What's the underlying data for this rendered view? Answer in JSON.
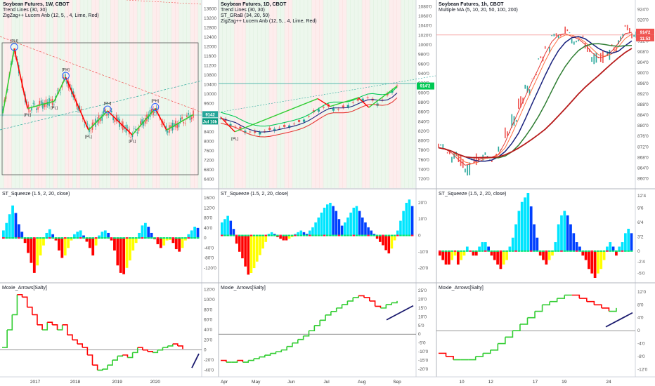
{
  "chart_data": [
    {
      "type": "line",
      "panel": "weekly-price",
      "title": "Soybean Futures, 1W, CBOT",
      "indicators": [
        "Trend Lines (30, 30)",
        "ZigZag++ Lucem Anb (12, 5, , 4, Lime, Red)"
      ],
      "y_ticks": [
        "13600",
        "13200",
        "12800",
        "12400",
        "12000",
        "11600",
        "11200",
        "10800",
        "10400",
        "10000",
        "9600",
        "9200",
        "8800",
        "8400",
        "8000",
        "7600",
        "7200",
        "6800",
        "6400"
      ],
      "ylim": [
        6200,
        13800
      ],
      "x_ticks": [
        "2017",
        "2018",
        "2019",
        "2020"
      ],
      "zigzag": [
        [
          0,
          9200
        ],
        [
          0.06,
          11900
        ],
        [
          0.13,
          9400
        ],
        [
          0.27,
          9700
        ],
        [
          0.33,
          10700
        ],
        [
          0.45,
          8500
        ],
        [
          0.55,
          9300
        ],
        [
          0.68,
          8300
        ],
        [
          0.8,
          9400
        ],
        [
          0.86,
          8500
        ],
        [
          1.0,
          9142
        ]
      ],
      "labels": [
        "[PH]",
        "[PL]",
        "[PH]",
        "[PL]",
        "[PH]",
        "[PL]",
        "[PH]",
        "[PL]"
      ],
      "price_badge": "9142",
      "contract_badge": "Jul 10h",
      "legend": "top-left",
      "grid": false
    },
    {
      "type": "line",
      "panel": "daily-price",
      "title": "Soybean Futures, 1D, CBOT",
      "indicators": [
        "Trend Lines (30, 30)",
        "ST_GRaB (34, 20, 50)",
        "ZigZag++ Lucem Anb (12, 5, , 4, Lime, Red)"
      ],
      "y_ticks": [
        "1080'0",
        "1060'0",
        "1040'0",
        "1020'0",
        "1000'0",
        "980'0",
        "960'0",
        "940'0",
        "920'0",
        "900'0",
        "880'0",
        "860'0",
        "840'0",
        "820'0",
        "800'0",
        "780'0",
        "760'0",
        "740'0",
        "720'0"
      ],
      "ylim": [
        710,
        1085
      ],
      "x_ticks": [
        "Apr",
        "May",
        "Jun",
        "Jul",
        "Aug",
        "Sep"
      ],
      "close": [
        848,
        842,
        836,
        830,
        826,
        822,
        820,
        818,
        819,
        821,
        824,
        826,
        828,
        830,
        833,
        836,
        840,
        845,
        852,
        860,
        866,
        870,
        872,
        868,
        866,
        870,
        875,
        880,
        884,
        888,
        890,
        884,
        878,
        885,
        895,
        905,
        914
      ],
      "labels": [
        "[PL]"
      ],
      "price_badge": "914'2",
      "legend": "top-left",
      "grid": false
    },
    {
      "type": "line",
      "panel": "hourly-price",
      "title": "Soybean Futures, 1h, CBOT",
      "indicators": [
        "Multiple MA (5, 10, 20, 50, 100, 200)"
      ],
      "y_ticks": [
        "924'0",
        "920'0",
        "916'0",
        "912'0",
        "908'0",
        "904'0",
        "900'0",
        "896'0",
        "892'0",
        "888'0",
        "884'0",
        "880'0",
        "876'0",
        "872'0",
        "868'0",
        "864'0",
        "860'0"
      ],
      "ylim": [
        858,
        926
      ],
      "x_ticks": [
        "10",
        "12",
        "17",
        "19",
        "24"
      ],
      "close": [
        872,
        871,
        869,
        866,
        865,
        867,
        868,
        869,
        868,
        871,
        877,
        883,
        888,
        894,
        899,
        904,
        910,
        913,
        915,
        914,
        913,
        912,
        909,
        906,
        905,
        907,
        909,
        913,
        916,
        914
      ],
      "price_badge": "914'2",
      "time_badge": "11:53",
      "legend": "top-left",
      "grid": false
    },
    {
      "type": "bar",
      "panel": "squeeze-weekly",
      "title": "ST_Squeeze (1.5, 2, 20, close)",
      "y_ticks": [
        "160'0",
        "120'0",
        "80'0",
        "40'0",
        "0",
        "-40'0",
        "-80'0",
        "-120'0"
      ],
      "ylim": [
        -160,
        180
      ],
      "values": [
        30,
        60,
        95,
        130,
        100,
        55,
        25,
        -20,
        -60,
        -100,
        -140,
        -110,
        -70,
        -30,
        20,
        35,
        15,
        -10,
        -50,
        -80,
        -70,
        -40,
        -10,
        15,
        25,
        30,
        10,
        -15,
        -40,
        -70,
        -30,
        10,
        25,
        30,
        20,
        -10,
        -50,
        -110,
        -140,
        -145,
        -120,
        -90,
        -50,
        -20,
        20,
        50,
        60,
        45,
        20,
        -5,
        -25,
        -40,
        -30,
        -10,
        -8,
        -20,
        -45,
        -55,
        -40,
        -10,
        15,
        30,
        45,
        40
      ]
    },
    {
      "type": "bar",
      "panel": "squeeze-daily",
      "title": "ST_Squeeze (1.5, 2, 20, close)",
      "y_ticks": [
        "20'0",
        "10'0",
        "0",
        "-10'0",
        "-20'0"
      ],
      "ylim": [
        -26,
        26
      ],
      "values": [
        8,
        10,
        12,
        9,
        4,
        -5,
        -10,
        -14,
        -19,
        -24,
        -23,
        -20,
        -16,
        -12,
        -8,
        -4,
        1,
        2,
        1,
        -1,
        -2,
        -3,
        -3,
        -2,
        -1,
        1,
        2,
        3,
        2,
        1,
        3,
        5,
        8,
        11,
        14,
        17,
        19,
        20,
        18,
        15,
        10,
        6,
        8,
        11,
        14,
        17,
        18,
        15,
        11,
        8,
        5,
        3,
        1,
        -2,
        -4,
        -6,
        -9,
        -11,
        -8,
        -3,
        3,
        9,
        15,
        20,
        22,
        18
      ]
    },
    {
      "type": "bar",
      "panel": "squeeze-hourly",
      "title": "ST_Squeeze (1.5, 2, 20, close)",
      "y_ticks": [
        "12'4",
        "9'6",
        "6'4",
        "3'2",
        "0",
        "-2'4",
        "-5'0"
      ],
      "ylim": [
        -6,
        13
      ],
      "values": [
        -1,
        -2,
        -3,
        -3,
        -2,
        -1,
        -3,
        -2,
        -1,
        1,
        0,
        -1,
        -1,
        1,
        2,
        2,
        1,
        -1,
        -2,
        -3,
        -4,
        -3,
        -2,
        1,
        3,
        6,
        9,
        11,
        12,
        13,
        10,
        6,
        3,
        -1,
        -2,
        -3,
        -2,
        -1,
        2,
        6,
        8,
        9,
        8,
        6,
        4,
        2,
        1,
        -1,
        -2,
        -4,
        -5,
        -6,
        -5,
        -4,
        -2,
        1,
        2,
        1,
        -1,
        1,
        2,
        4,
        5,
        4
      ]
    },
    {
      "type": "line",
      "panel": "moxie-weekly",
      "title": "Moxie_Arrows[Salty]",
      "y_ticks": [
        "120'0",
        "100'0",
        "80'0",
        "60'0",
        "40'0",
        "20'0",
        "0",
        "-20'0",
        "-40'0"
      ],
      "ylim": [
        -45,
        125
      ],
      "values": [
        5,
        40,
        70,
        110,
        105,
        85,
        70,
        50,
        40,
        55,
        50,
        40,
        50,
        30,
        20,
        12,
        5,
        -10,
        -30,
        -40,
        -38,
        -30,
        -20,
        -12,
        -10,
        -15,
        -5,
        5,
        0,
        -3,
        -5,
        0,
        5,
        8,
        12,
        8,
        2
      ]
    },
    {
      "type": "line",
      "panel": "moxie-daily",
      "title": "Moxie_Arrows[Salty]",
      "y_ticks": [
        "25'0",
        "20'0",
        "15'0",
        "10'0",
        "5'0",
        "0",
        "-5'0",
        "-10'0",
        "-15'0",
        "-20'0"
      ],
      "ylim": [
        -22,
        27
      ],
      "values": [
        -15,
        -16,
        -16,
        -15,
        -16,
        -15,
        -14,
        -13,
        -12,
        -11,
        -10,
        -9,
        -7,
        -5,
        -3,
        -1,
        2,
        5,
        8,
        11,
        13,
        15,
        17,
        19,
        21,
        22,
        21,
        19,
        16,
        15,
        17,
        18,
        19
      ]
    },
    {
      "type": "line",
      "panel": "moxie-hourly",
      "title": "Moxie_Arrows[Salty]",
      "y_ticks": [
        "12'0",
        "8'0",
        "4'0",
        "0",
        "-4'0",
        "-8'0",
        "-12'0"
      ],
      "ylim": [
        -13,
        13.5
      ],
      "values": [
        -7,
        -8,
        -9,
        -9,
        -9,
        -8,
        -7,
        -6,
        -4,
        -2,
        0,
        2,
        4,
        6,
        8,
        9,
        10,
        11,
        11,
        10,
        9,
        8,
        7,
        6,
        7
      ]
    }
  ],
  "colors": {
    "up": "#26a69a",
    "down": "#ef5350",
    "zigzag_up": "#32cd32",
    "zigzag_down": "#ff0000",
    "squeeze_pos_strong": "#00e5ff",
    "squeeze_pos_weak": "#0040ff",
    "squeeze_neg_strong": "#ff0000",
    "squeeze_neg_weak": "#ffff00",
    "moxie_up": "#32cd32",
    "moxie_down": "#ff0000",
    "trend_arrow": "#1a1a6e",
    "badge": "#26a69a"
  }
}
